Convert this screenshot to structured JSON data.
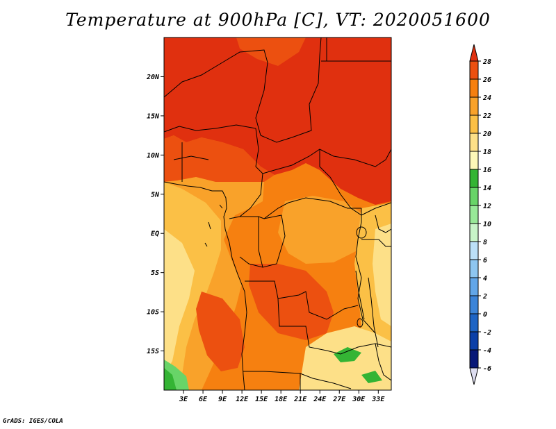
{
  "title": "Temperature at 900hPa [C], VT: 2020051600",
  "footer": "GrADS: IGES/COLA",
  "map": {
    "lon_range": [
      0,
      35
    ],
    "lat_range": [
      -20,
      25
    ],
    "lat_ticks": [
      "20N",
      "15N",
      "10N",
      "5N",
      "EQ",
      "5S",
      "10S",
      "15S"
    ],
    "lat_values": [
      20,
      15,
      10,
      5,
      0,
      -5,
      -10,
      -15
    ],
    "lon_ticks": [
      "3E",
      "6E",
      "9E",
      "12E",
      "15E",
      "18E",
      "21E",
      "24E",
      "27E",
      "30E",
      "33E"
    ],
    "lon_values": [
      3,
      6,
      9,
      12,
      15,
      18,
      21,
      24,
      27,
      30,
      33
    ]
  },
  "colorbar": {
    "labels": [
      "28",
      "26",
      "24",
      "22",
      "20",
      "18",
      "16",
      "14",
      "12",
      "10",
      "8",
      "6",
      "4",
      "2",
      "0",
      "-2",
      "-4",
      "-6"
    ],
    "colors": [
      "#e0300f",
      "#ec5010",
      "#f68010",
      "#f9a22a",
      "#fbc046",
      "#fde088",
      "#fdf8b8",
      "#34b434",
      "#68d468",
      "#98e898",
      "#c8f4c8",
      "#bce0f8",
      "#8ec6f0",
      "#62a6e8",
      "#3c84d8",
      "#1e64c4",
      "#0c40a8",
      "#081878",
      "#ddddf0"
    ]
  }
}
